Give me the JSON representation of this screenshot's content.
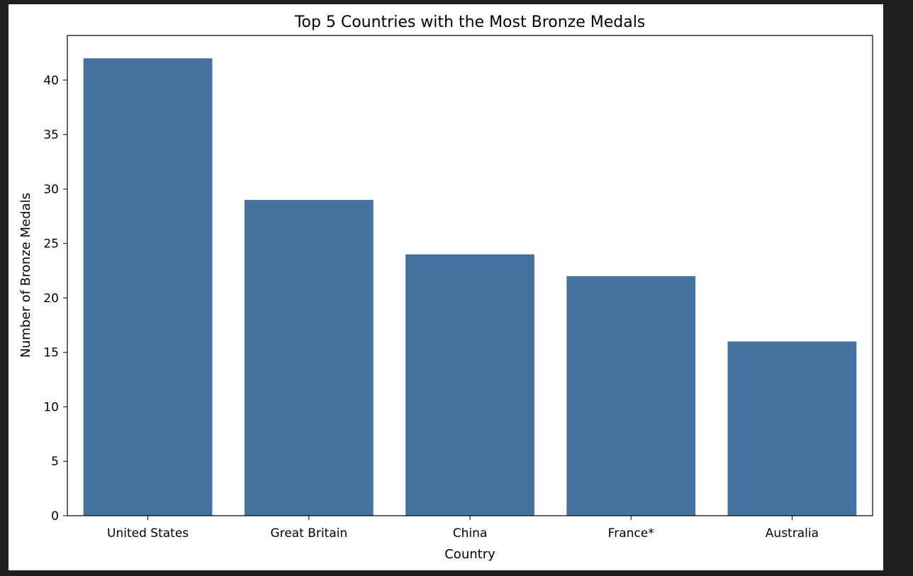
{
  "chart_data": {
    "type": "bar",
    "title": "Top 5 Countries with the Most Bronze Medals",
    "xlabel": "Country",
    "ylabel": "Number of Bronze Medals",
    "categories": [
      "United States",
      "Great Britain",
      "China",
      "France*",
      "Australia"
    ],
    "values": [
      42,
      29,
      24,
      22,
      16
    ],
    "ylim": [
      0,
      44.1
    ],
    "yticks": [
      0,
      5,
      10,
      15,
      20,
      25,
      30,
      35,
      40
    ],
    "bar_color": "#4473a0",
    "grid": false,
    "legend": "none"
  },
  "colors": {
    "background": "#1f1f1f",
    "figure": "#ffffff",
    "bar": "#4473a0"
  }
}
